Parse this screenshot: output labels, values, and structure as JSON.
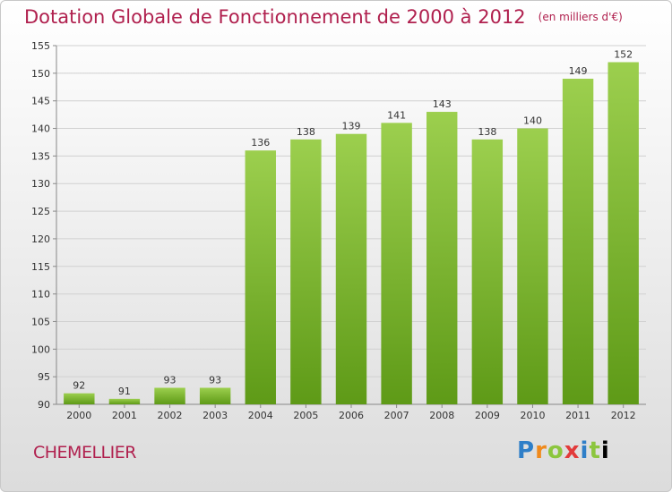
{
  "header": {
    "title": "Dotation Globale de Fonctionnement de 2000 à 2012",
    "unit": "(en milliers d'€)"
  },
  "footer": {
    "commune": "CHEMELLIER",
    "logo_text": "Proxiti"
  },
  "colors": {
    "title": "#b0204e",
    "bar_light": "#9ccf4e",
    "bar_dark": "#5e9a17"
  },
  "chart_data": {
    "type": "bar",
    "title": "Dotation Globale de Fonctionnement de 2000 à 2012",
    "xlabel": "",
    "ylabel": "",
    "categories": [
      "2000",
      "2001",
      "2002",
      "2003",
      "2004",
      "2005",
      "2006",
      "2007",
      "2008",
      "2009",
      "2010",
      "2011",
      "2012"
    ],
    "values": [
      92,
      91,
      93,
      93,
      136,
      138,
      139,
      141,
      143,
      138,
      140,
      149,
      152
    ],
    "ylim": [
      90,
      155
    ],
    "yticks": [
      90,
      95,
      100,
      105,
      110,
      115,
      120,
      125,
      130,
      135,
      140,
      145,
      150,
      155
    ],
    "grid": true
  }
}
